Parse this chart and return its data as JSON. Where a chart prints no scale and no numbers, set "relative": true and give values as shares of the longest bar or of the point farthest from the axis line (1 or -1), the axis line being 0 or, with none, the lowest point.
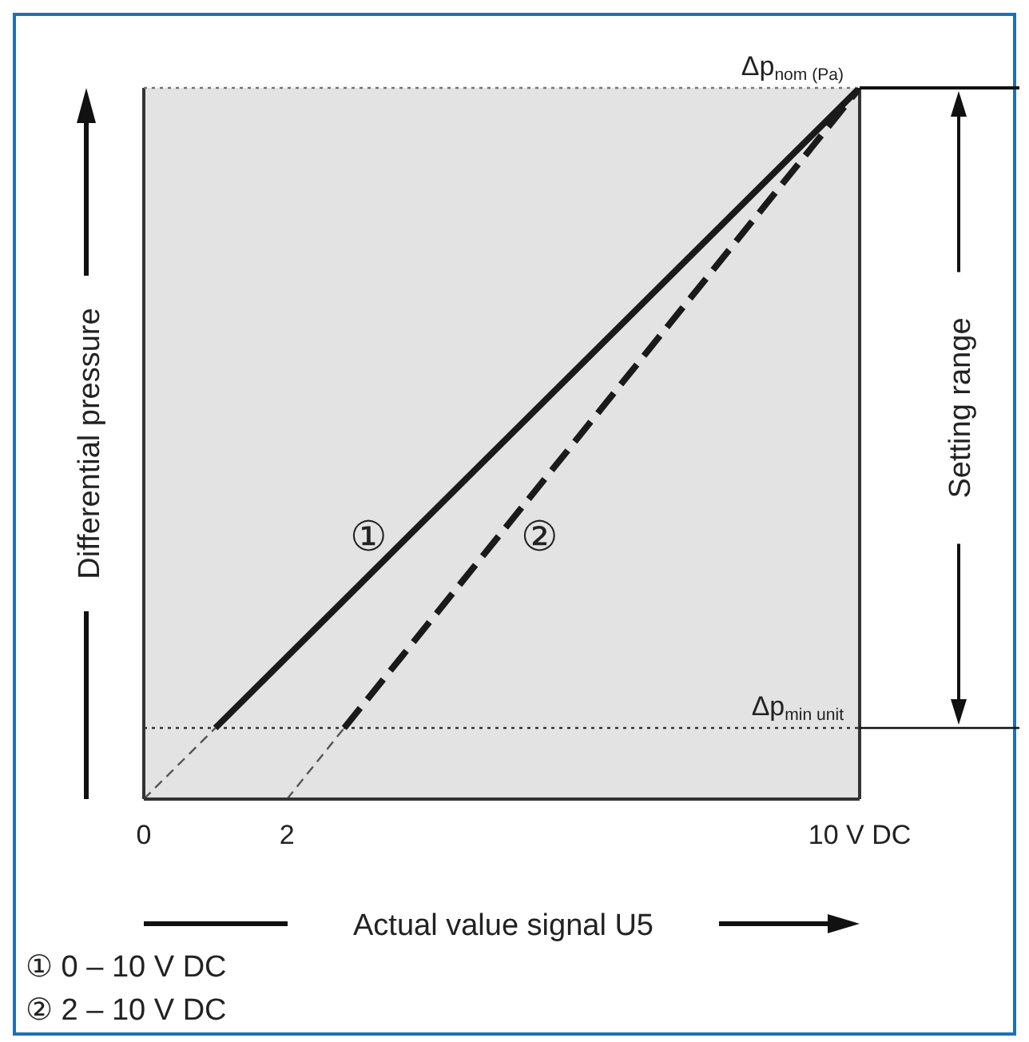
{
  "chart_data": {
    "type": "line",
    "relative": true,
    "xlabel": "Actual value signal U5",
    "ylabel": "Differential pressure",
    "xlim": [
      0,
      10
    ],
    "xticks": [
      0,
      2,
      {
        "value": 10,
        "label": "10 V DC"
      }
    ],
    "grid": false,
    "marker": "none",
    "series": [
      {
        "name": "①",
        "color": "#1a1a1a",
        "line_style": "solid",
        "x": [
          1,
          10
        ],
        "values": [
          0.1,
          1
        ]
      },
      {
        "name": "②",
        "color": "#1a1a1a",
        "line_style": "dashed",
        "x": [
          2.8,
          10
        ],
        "values": [
          0.1,
          1
        ]
      },
      {
        "color": "#555555",
        "line_style": "dashed",
        "x": [
          0,
          1
        ],
        "values": [
          0,
          0.1
        ]
      },
      {
        "color": "#555555",
        "line_style": "dashed",
        "x": [
          2,
          2.8
        ],
        "values": [
          0,
          0.1
        ]
      }
    ],
    "ref_lines": [
      {
        "axis": "y",
        "value": 1,
        "label": "Δp$_{nom (Pa)}$",
        "line_style": "dotted",
        "color": "#777777"
      },
      {
        "axis": "y",
        "value": 0.1,
        "label": "Δp$_{min unit}$",
        "line_style": "dotted",
        "color": "#333333"
      }
    ],
    "annotations": [
      "Setting range",
      "① 0 – 10 V DC",
      "② 2 – 10 V DC"
    ]
  }
}
